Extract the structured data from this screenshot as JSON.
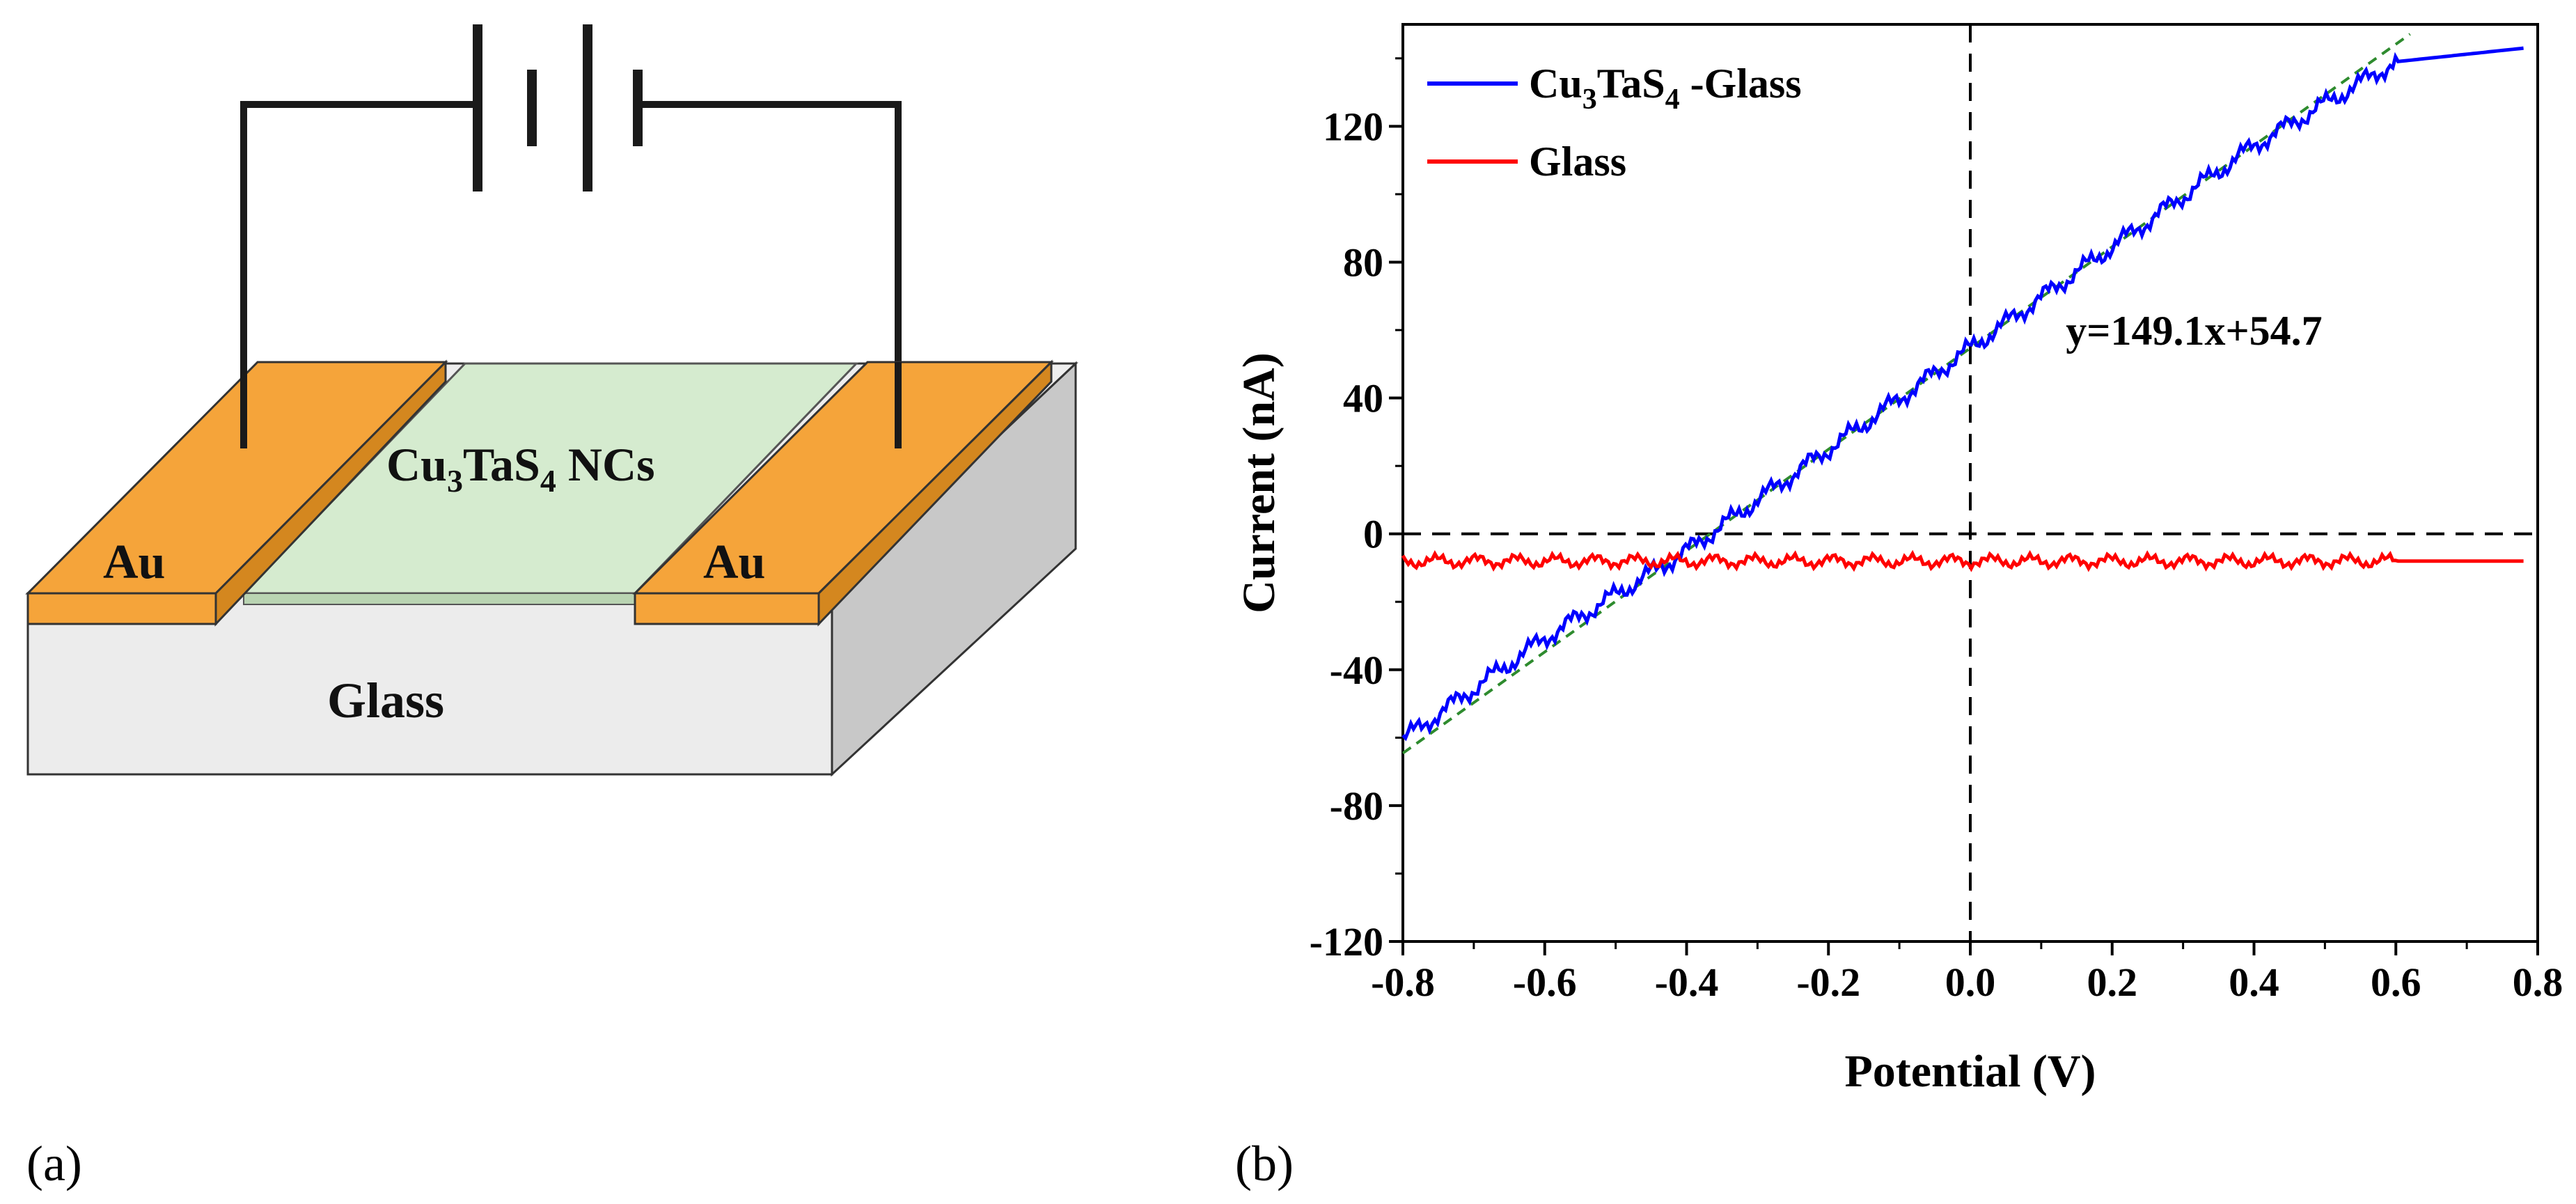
{
  "panels": {
    "a": {
      "label": "(a)",
      "au_left": "Au",
      "au_right": "Au",
      "nc_prefix": "Cu",
      "nc_sub1": "3",
      "nc_mid": "TaS",
      "nc_sub2": "4",
      "nc_suffix": " NCs",
      "substrate": "Glass",
      "colors": {
        "gold": "#f5a43a",
        "film": "#d5ebcf",
        "glass": "#ececec",
        "glass_side": "#c8c8c8",
        "wire": "#1a1a1a"
      }
    },
    "b": {
      "label": "(b)"
    }
  },
  "chart_data": {
    "type": "line",
    "title": "",
    "xlabel": "Potential (V)",
    "ylabel": "Current (nA)",
    "xlim": [
      -0.8,
      0.8
    ],
    "ylim": [
      -120,
      150
    ],
    "xticks": [
      -0.8,
      -0.6,
      -0.4,
      -0.2,
      0.0,
      0.2,
      0.4,
      0.6,
      0.8
    ],
    "xtick_labels": [
      "-0.8",
      "-0.6",
      "-0.4",
      "-0.2",
      "0.0",
      "0.2",
      "0.4",
      "0.6",
      "0.8"
    ],
    "yticks": [
      -120,
      -80,
      -40,
      0,
      40,
      80,
      120
    ],
    "ytick_labels": [
      "-120",
      "-80",
      "-40",
      "0",
      "40",
      "80",
      "120"
    ],
    "series": [
      {
        "name": "Cu3TaS4 -Glass",
        "legend_prefix": "Cu",
        "legend_sub1": "3",
        "legend_mid": "TaS",
        "legend_sub2": "4",
        "legend_suffix": " -Glass",
        "color": "#0000ff",
        "x": [
          -0.8,
          -0.6,
          -0.4,
          -0.2,
          0.0,
          0.2,
          0.4,
          0.6,
          0.78
        ],
        "y": [
          -60.5,
          -30.7,
          -5.0,
          24.9,
          54.7,
          84.5,
          114.3,
          139.0,
          143.0
        ]
      },
      {
        "name": "Glass",
        "color": "#ff0000",
        "x": [
          -0.8,
          -0.4,
          0.0,
          0.4,
          0.78
        ],
        "y": [
          -8,
          -8,
          -8,
          -8,
          -8
        ]
      }
    ],
    "fit": {
      "label": "y=149.1x+54.7",
      "slope": 149.1,
      "intercept": 54.7,
      "color": "#2e8b2e",
      "x_range": [
        -0.8,
        0.6
      ]
    },
    "reference_lines": {
      "x": 0,
      "y": 0
    },
    "legend_position": "top-left",
    "grid": false
  }
}
